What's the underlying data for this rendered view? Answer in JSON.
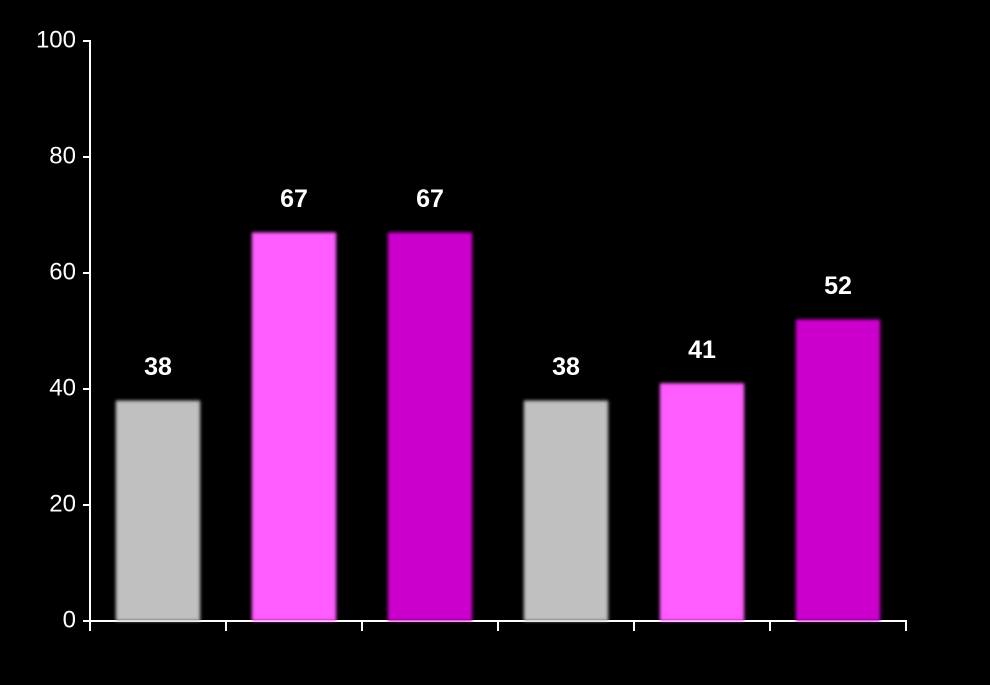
{
  "chart_data": {
    "type": "bar",
    "categories": [
      null,
      null,
      null,
      null,
      null,
      null
    ],
    "values": [
      38,
      67,
      67,
      38,
      41,
      52
    ],
    "colors": [
      "#c0c0c0",
      "#ff5cff",
      "#cc00cc",
      "#c0c0c0",
      "#ff5cff",
      "#cc00cc"
    ],
    "ylim": [
      0,
      100
    ],
    "yticks": [
      0,
      20,
      40,
      60,
      80,
      100
    ],
    "grid": false
  }
}
